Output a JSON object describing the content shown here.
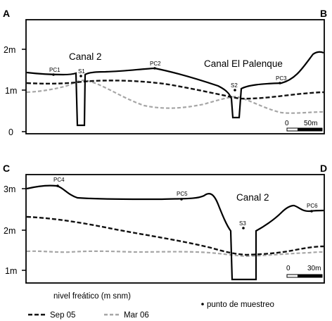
{
  "panel_top": {
    "corner_left": "A",
    "corner_right": "B",
    "y_ticks": [
      "2m",
      "1m",
      "0"
    ],
    "canal_labels": [
      "Canal 2",
      "Canal El Palenque"
    ],
    "points": [
      "PC1",
      "S1",
      "PC2",
      "S2",
      "PC3"
    ],
    "scale_start": "0",
    "scale_end": "50m"
  },
  "panel_bottom": {
    "corner_left": "C",
    "corner_right": "D",
    "y_ticks": [
      "3m",
      "2m",
      "1m"
    ],
    "canal_labels": [
      "Canal 2"
    ],
    "points": [
      "PC4",
      "PC5",
      "S3",
      "PC6"
    ],
    "scale_start": "0",
    "scale_end": "30m"
  },
  "legend": {
    "title": "nivel freático (m snm)",
    "series": [
      {
        "label": "Sep 05",
        "color": "#111111",
        "style": "dashed-bold"
      },
      {
        "label": "Mar 06",
        "color": "#a6a6a6",
        "style": "dashed-light"
      }
    ],
    "sampling_point": "punto de muestreo"
  }
}
